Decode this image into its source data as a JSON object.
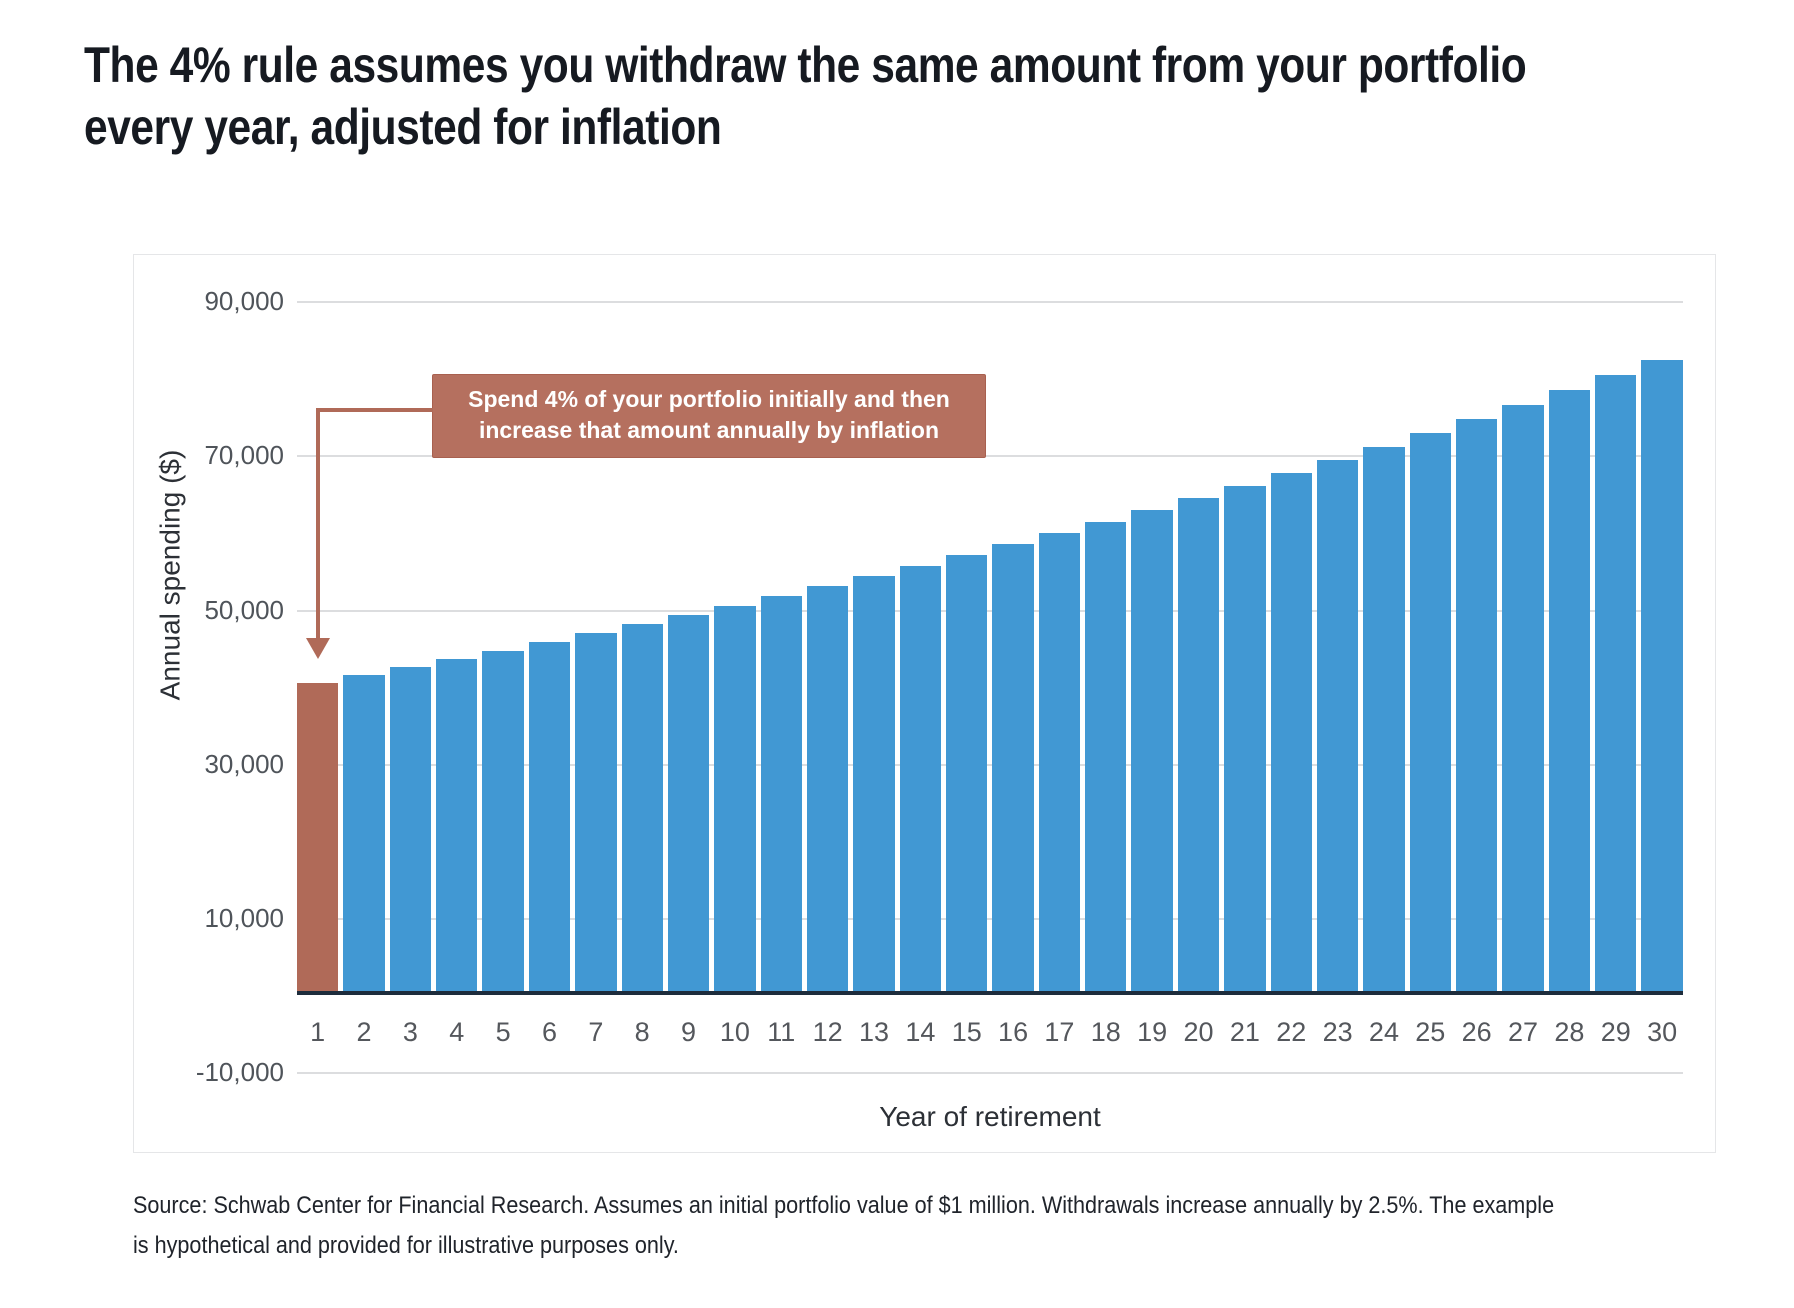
{
  "header": {
    "title_lines": [
      "The 4% rule assumes you withdraw the same amount from your portfolio",
      "every year, adjusted for inflation"
    ]
  },
  "chart_data": {
    "type": "bar",
    "title": "",
    "xlabel": "Year of retirement",
    "ylabel": "Annual spending ($)",
    "categories": [
      1,
      2,
      3,
      4,
      5,
      6,
      7,
      8,
      9,
      10,
      11,
      12,
      13,
      14,
      15,
      16,
      17,
      18,
      19,
      20,
      21,
      22,
      23,
      24,
      25,
      26,
      27,
      28,
      29,
      30
    ],
    "values": [
      40000,
      41000,
      42025,
      43076,
      44153,
      45256,
      46388,
      47547,
      48736,
      49955,
      51203,
      52483,
      53796,
      55140,
      56519,
      57932,
      59380,
      60865,
      62386,
      63946,
      65545,
      67183,
      68863,
      70584,
      72349,
      74158,
      76012,
      77912,
      79860,
      81856
    ],
    "ylim": [
      -10000,
      90000
    ],
    "yticks": [
      90000,
      70000,
      50000,
      30000,
      10000,
      -10000
    ],
    "ytick_labels": [
      "90,000",
      "70,000",
      "50,000",
      "30,000",
      "10,000",
      "-10,000"
    ],
    "grid": "horizontal",
    "legend": "none",
    "bar_color": "#4198d3",
    "highlight_bar": {
      "index": 0,
      "color": "#b06a58"
    },
    "annotation": {
      "lines": [
        "Spend 4% of your portfolio initially and then",
        "increase that amount annually by inflation"
      ],
      "bg_color": "#b5705f",
      "text_color": "#ffffff"
    }
  },
  "footer": {
    "source_lines": [
      "Source: Schwab Center for Financial Research. Assumes an initial portfolio value of $1 million. Withdrawals increase annually by 2.5%. The example",
      "is hypothetical and provided for illustrative purposes only."
    ]
  }
}
